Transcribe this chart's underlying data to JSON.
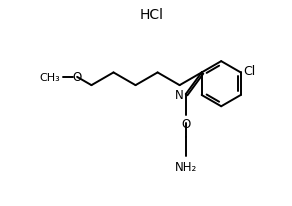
{
  "bg_color": "#ffffff",
  "bond_color": "#000000",
  "lw": 1.4,
  "font_size": 8.5,
  "hcl_label": "HCl",
  "cl_label": "Cl",
  "n_label": "N",
  "o_label": "O",
  "o_meth_label": "O",
  "nh2_label": "NH₂",
  "ch3_label": "CH₃",
  "xlim": [
    0,
    10
  ],
  "ylim": [
    0,
    7
  ]
}
